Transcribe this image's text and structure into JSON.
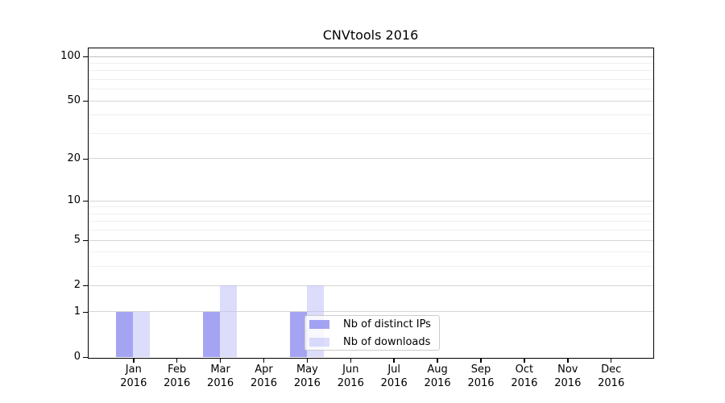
{
  "chart_data": {
    "type": "bar",
    "title": "CNVtools 2016",
    "categories": [
      "Jan",
      "Feb",
      "Mar",
      "Apr",
      "May",
      "Jun",
      "Jul",
      "Aug",
      "Sep",
      "Oct",
      "Nov",
      "Dec"
    ],
    "category_year": "2016",
    "series": [
      {
        "name": "Nb of distinct IPs",
        "color": "rgba(125,125,238,0.7)",
        "values": [
          1,
          0,
          1,
          0,
          1,
          0,
          0,
          0,
          0,
          0,
          0,
          0
        ]
      },
      {
        "name": "Nb of downloads",
        "color": "rgba(185,185,248,0.5)",
        "values": [
          1,
          0,
          2,
          0,
          2,
          0,
          0,
          0,
          0,
          0,
          0,
          0
        ]
      }
    ],
    "y_major_ticks": [
      0,
      1,
      2,
      5,
      10,
      20,
      50,
      100
    ],
    "y_minor_ticks": [
      3,
      4,
      6,
      7,
      8,
      9,
      30,
      40,
      60,
      70,
      80,
      90
    ],
    "scale": "log10(1+v)",
    "ylim": [
      0,
      110
    ],
    "xlabel": "",
    "ylabel": "",
    "grid": "horizontal",
    "legend_position": "lower-right-inside",
    "colors": {
      "major_gridline": "#d6d6d6",
      "top_gridline": "#c0c0c0",
      "minor_gridline": "#efefef",
      "axis": "#000000"
    }
  }
}
